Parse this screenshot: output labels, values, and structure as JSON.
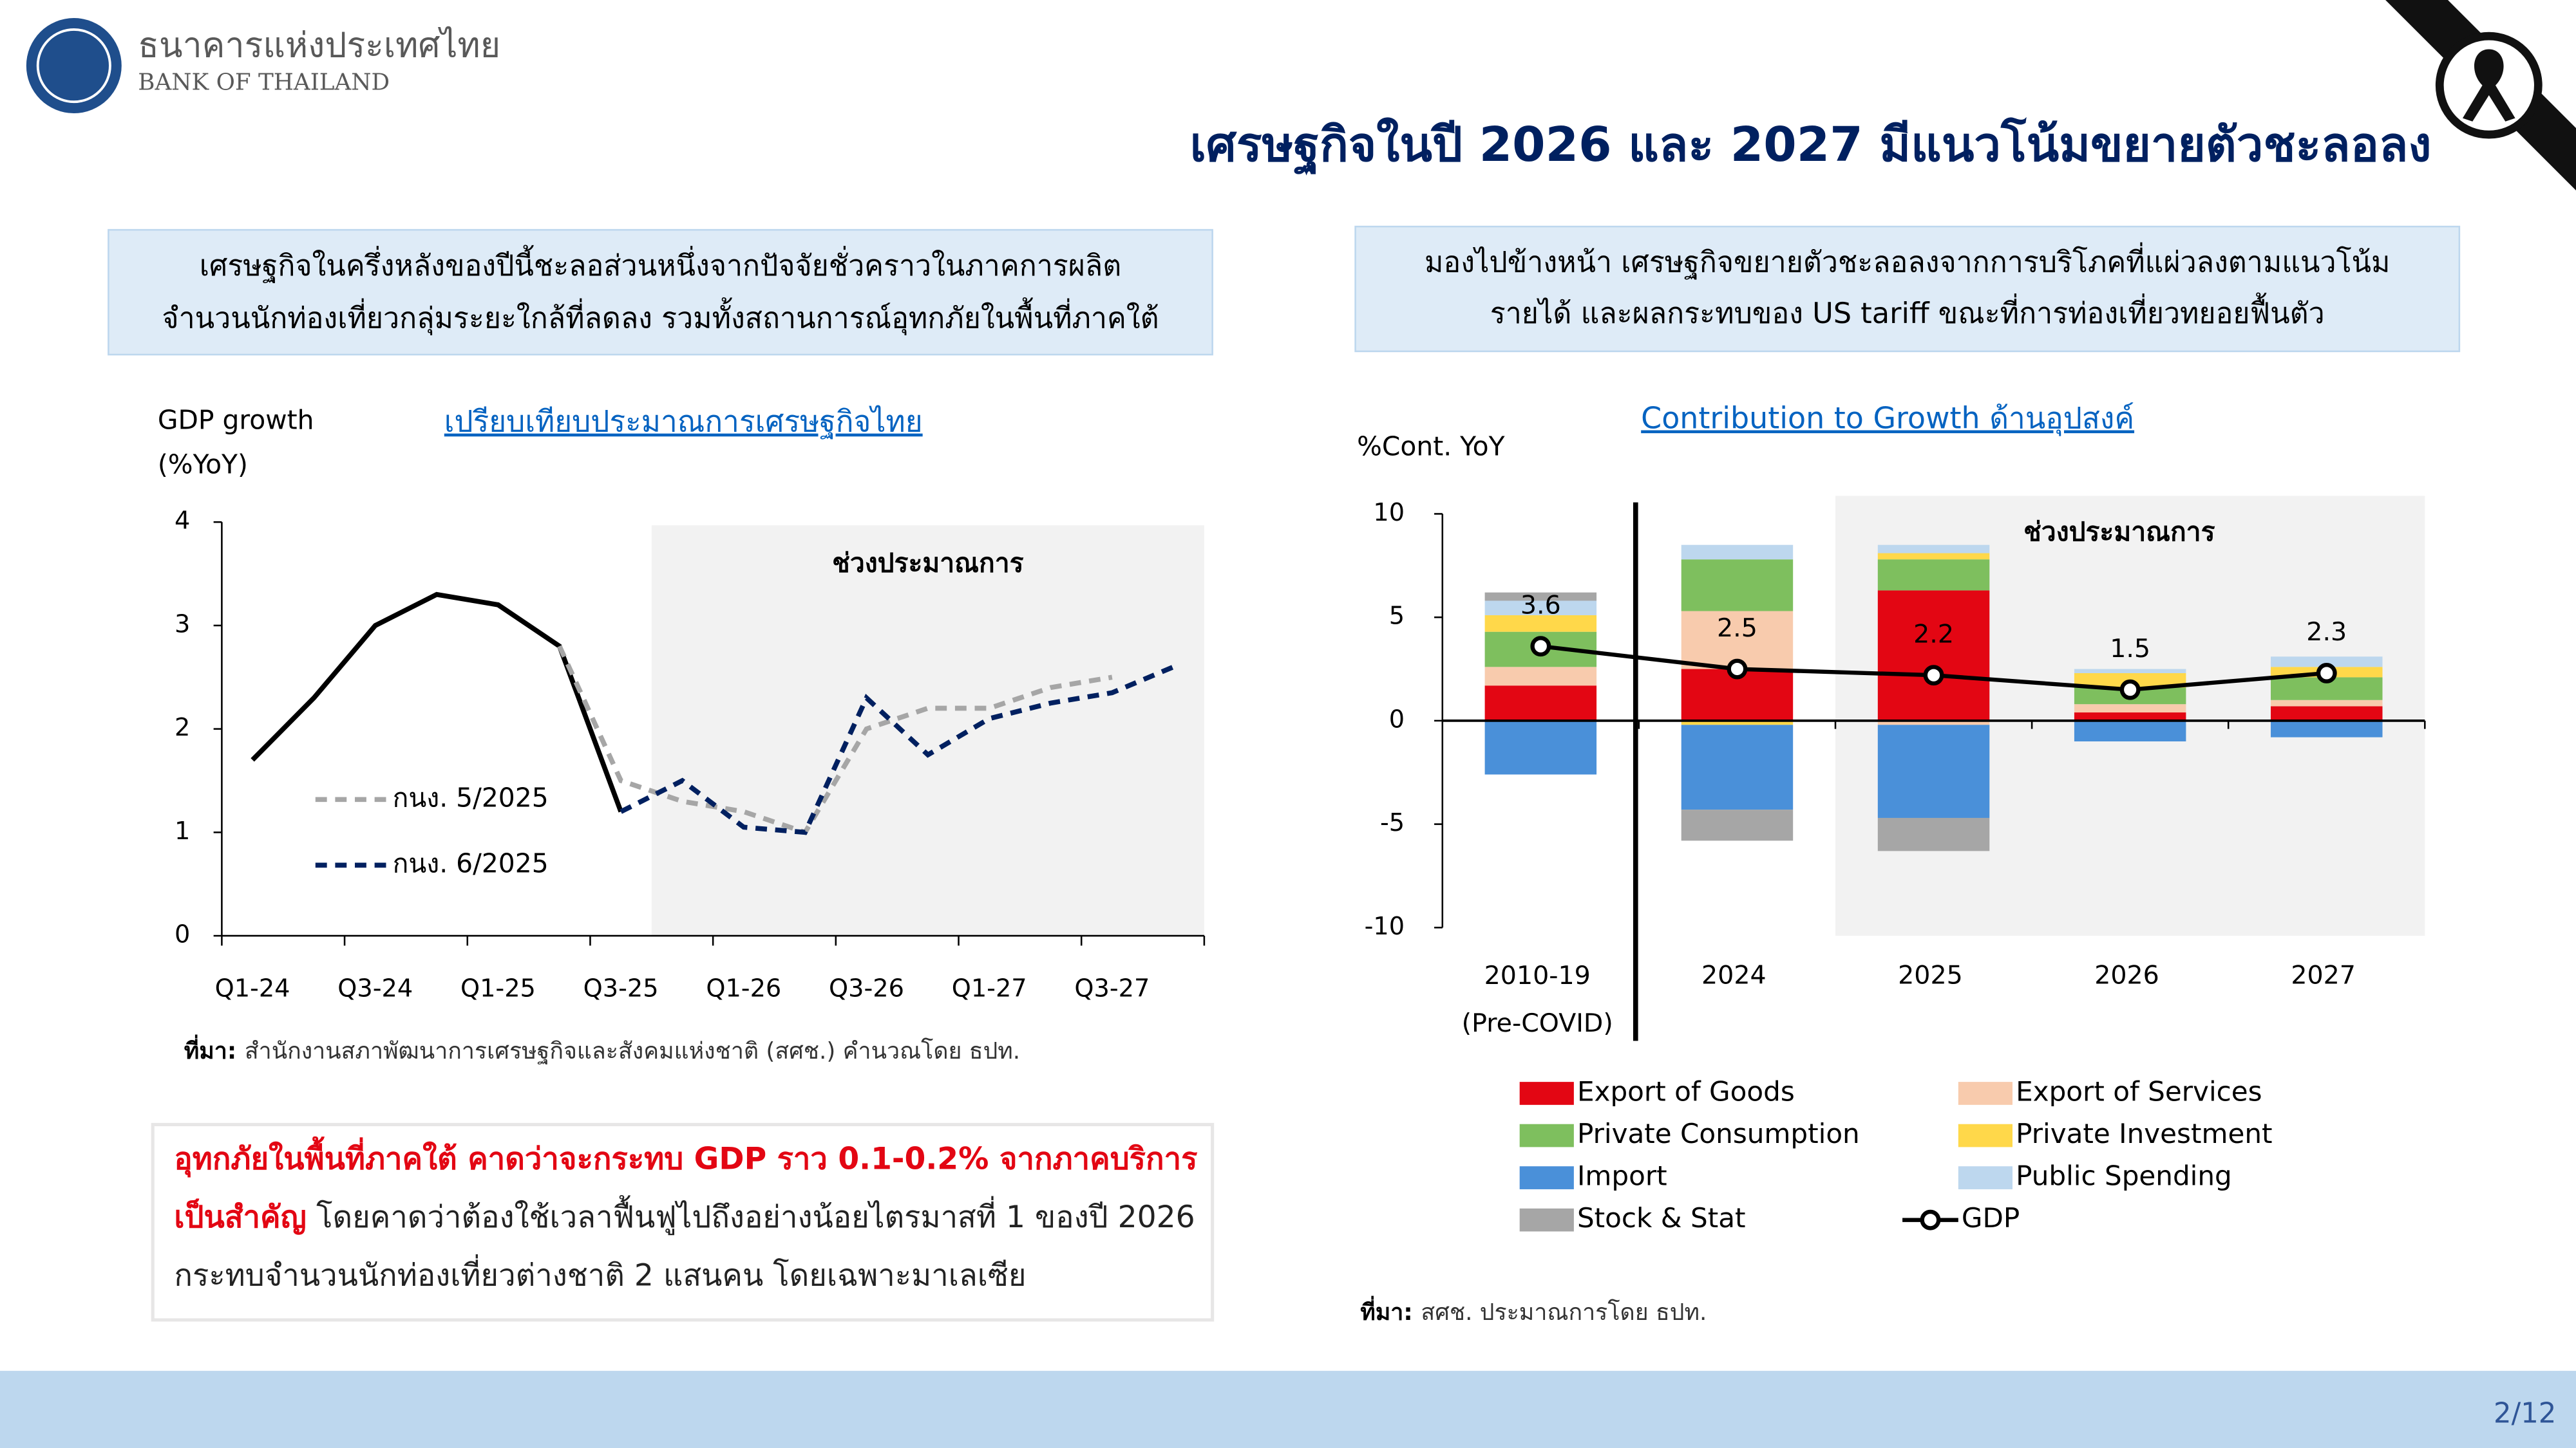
{
  "header": {
    "org_th": "ธนาคารแห่งประเทศไทย",
    "org_en": "BANK OF THAILAND",
    "title": "เศรษฐกิจในปี 2026 และ 2027 มีแนวโน้มขยายตัวชะลอลง"
  },
  "left_box": {
    "lines": [
      "เศรษฐกิจในครึ่งหลังของปีนี้ชะลอส่วนหนึ่งจากปัจจัยชั่วคราวในภาคการผลิต",
      "จำนวนนักท่องเที่ยวกลุ่มระยะใกล้ที่ลดลง รวมทั้งสถานการณ์อุทกภัยในพื้นที่ภาคใต้"
    ]
  },
  "right_box": {
    "lines": [
      "มองไปข้างหน้า เศรษฐกิจขยายตัวชะลอลงจากการบริโภคที่แผ่วลงตามแนวโน้ม",
      "รายได้ และผลกระทบของ US tariff ขณะที่การท่องเที่ยวทยอยฟื้นตัว"
    ]
  },
  "chart_data": [
    {
      "type": "line",
      "title": "เปรียบเทียบประมาณการเศรษฐกิจไทย",
      "y_label": [
        "GDP growth",
        "(%YoY)"
      ],
      "categories": [
        "Q1-24",
        null,
        "Q3-24",
        null,
        "Q1-25",
        null,
        "Q3-25",
        null,
        "Q1-26",
        null,
        "Q3-26",
        null,
        "Q1-27",
        null,
        "Q3-27",
        null
      ],
      "series": [
        {
          "color": "#000000",
          "dash": false,
          "values": [
            1.7,
            2.3,
            3.0,
            3.3,
            3.2,
            2.8,
            1.2,
            null,
            null,
            null,
            null,
            null,
            null,
            null,
            null,
            null
          ]
        },
        {
          "name": "กนง. 5/2025",
          "color": "#a6a6a6",
          "dash": true,
          "values": [
            null,
            null,
            null,
            null,
            null,
            2.8,
            1.5,
            1.3,
            1.2,
            1.0,
            2.0,
            2.2,
            2.2,
            2.4,
            2.5,
            null
          ]
        },
        {
          "name": "กนง. 6/2025",
          "color": "#002060",
          "dash": true,
          "values": [
            null,
            null,
            null,
            null,
            null,
            null,
            1.2,
            1.5,
            1.05,
            1.0,
            2.3,
            1.75,
            2.1,
            2.25,
            2.35,
            2.6
          ]
        }
      ],
      "ylim": [
        0,
        4
      ],
      "yticks": [
        0,
        1,
        2,
        3,
        4
      ],
      "forecast_label": "ช่วงประมาณการ"
    },
    {
      "type": "bar",
      "stacked": true,
      "title": "Contribution to Growth ด้านอุปสงค์",
      "y_label": "%Cont. YoY",
      "categories": [
        "2010-19\n(Pre-COVID)",
        "2024",
        "2025",
        "2026",
        "2027"
      ],
      "series": [
        {
          "name": "Export of Goods",
          "color": "#e30613",
          "values": [
            1.7,
            2.5,
            6.3,
            0.4,
            0.7
          ]
        },
        {
          "name": "Export of Services",
          "color": "#f8cbad",
          "values": [
            0.9,
            2.8,
            -0.2,
            0.4,
            0.3
          ]
        },
        {
          "name": "Private Consumption",
          "color": "#7ebf5e",
          "values": [
            1.7,
            2.5,
            1.5,
            0.8,
            1.1
          ]
        },
        {
          "name": "Private Investment",
          "color": "#ffd84a",
          "values": [
            0.8,
            -0.2,
            0.3,
            0.7,
            0.5
          ]
        },
        {
          "name": "Import",
          "color": "#4a90d9",
          "values": [
            -2.6,
            -4.1,
            -4.5,
            -1.0,
            -0.8
          ]
        },
        {
          "name": "Public Spending",
          "color": "#bdd7ee",
          "values": [
            0.7,
            0.7,
            0.4,
            0.2,
            0.5
          ]
        },
        {
          "name": "Stock & Stat",
          "color": "#a6a6a6",
          "values": [
            0.4,
            -1.5,
            -1.6,
            0,
            0
          ]
        },
        {
          "name": "GDP",
          "type": "line",
          "color": "#000000",
          "values": [
            3.6,
            2.5,
            2.2,
            1.5,
            2.3
          ]
        }
      ],
      "ylim": [
        -10,
        10
      ],
      "yticks": [
        -10,
        -5,
        0,
        5,
        10
      ],
      "forecast": {
        "label": "ช่วงประมาณการ",
        "from": "2025"
      }
    }
  ],
  "left_source": {
    "label": "ที่มา:",
    "text": "สำนักงานสภาพัฒนาการเศรษฐกิจและสังคมแห่งชาติ (สศช.) คำนวณโดย ธปท."
  },
  "note": {
    "lines": [
      [
        {
          "text": "อุทกภัยในพื้นที่ภาคใต้ คาดว่าจะกระทบ GDP ราว 0.1-0.2% จากภาคบริการ",
          "emphasis": true
        }
      ],
      [
        {
          "text": "เป็นสำคัญ",
          "emphasis": true
        },
        {
          "text": "โดยคาดว่าต้องใช้เวลาฟื้นฟูไปถึงอย่างน้อยไตรมาสที่ 1 ของปี 2026"
        }
      ],
      [
        {
          "text": "กระทบจำนวนนักท่องเที่ยวต่างชาติ 2 แสนคน โดยเฉพาะมาเลเซีย"
        }
      ]
    ]
  },
  "right_source": {
    "label": "ที่มา:",
    "text": "สศช. ประมาณการโดย ธปท."
  },
  "page": "2/12"
}
